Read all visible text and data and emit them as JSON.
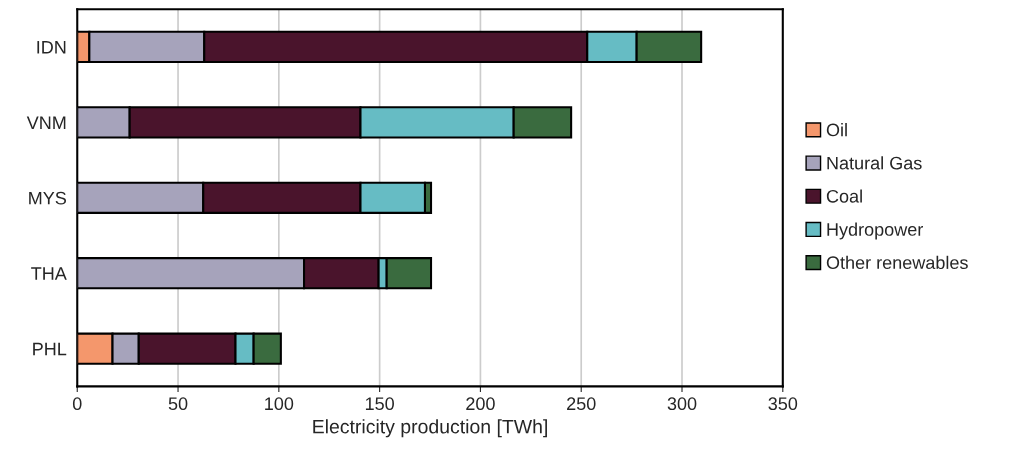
{
  "chart_data": {
    "type": "bar",
    "orientation": "horizontal",
    "stacked": true,
    "categories": [
      "IDN",
      "VNM",
      "MYS",
      "THA",
      "PHL"
    ],
    "xlabel": "Electricity production [TWh]",
    "xlim": [
      0,
      350
    ],
    "xticks": [
      0,
      50,
      100,
      150,
      200,
      250,
      300,
      350
    ],
    "grid": "x",
    "legend": "right",
    "series": [
      {
        "name": "Oil",
        "color": "#f4976c",
        "values": [
          6,
          0,
          null,
          null,
          17.5
        ]
      },
      {
        "name": "Natural Gas",
        "color": "#a6a3bb",
        "values": [
          57,
          26,
          62.5,
          112.5,
          13
        ]
      },
      {
        "name": "Coal",
        "color": "#4a142c",
        "values": [
          190,
          114.5,
          78,
          37,
          48
        ]
      },
      {
        "name": "Hydropower",
        "color": "#66bcc4",
        "values": [
          24.5,
          76,
          32,
          4,
          9
        ]
      },
      {
        "name": "Other renewables",
        "color": "#3a6b3f",
        "values": [
          32,
          28.5,
          3,
          22,
          13.5
        ]
      }
    ]
  }
}
